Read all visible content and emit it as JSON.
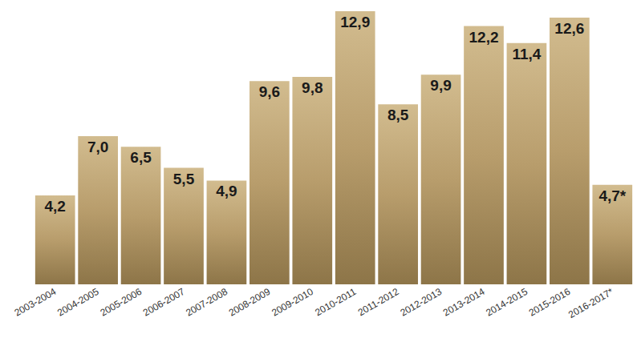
{
  "chart_data": {
    "type": "bar",
    "categories": [
      "2003-2004",
      "2004-2005",
      "2005-2006",
      "2006-2007",
      "2007-2008",
      "2008-2009",
      "2009-2010",
      "2010-2011",
      "2011-2012",
      "2012-2013",
      "2013-2014",
      "2014-2015",
      "2015-2016",
      "2016-2017*"
    ],
    "values": [
      4.2,
      7.0,
      6.5,
      5.5,
      4.9,
      9.6,
      9.8,
      12.9,
      8.5,
      9.9,
      12.2,
      11.4,
      12.6,
      4.7
    ],
    "value_labels": [
      "4,2",
      "7,0",
      "6,5",
      "5,5",
      "4,9",
      "9,6",
      "9,8",
      "12,9",
      "8,5",
      "9,9",
      "12,2",
      "11,4",
      "12,6",
      "4,7*"
    ],
    "color": "#b89d6c",
    "data_labels": true,
    "tick_labels": "x",
    "grid": false
  }
}
